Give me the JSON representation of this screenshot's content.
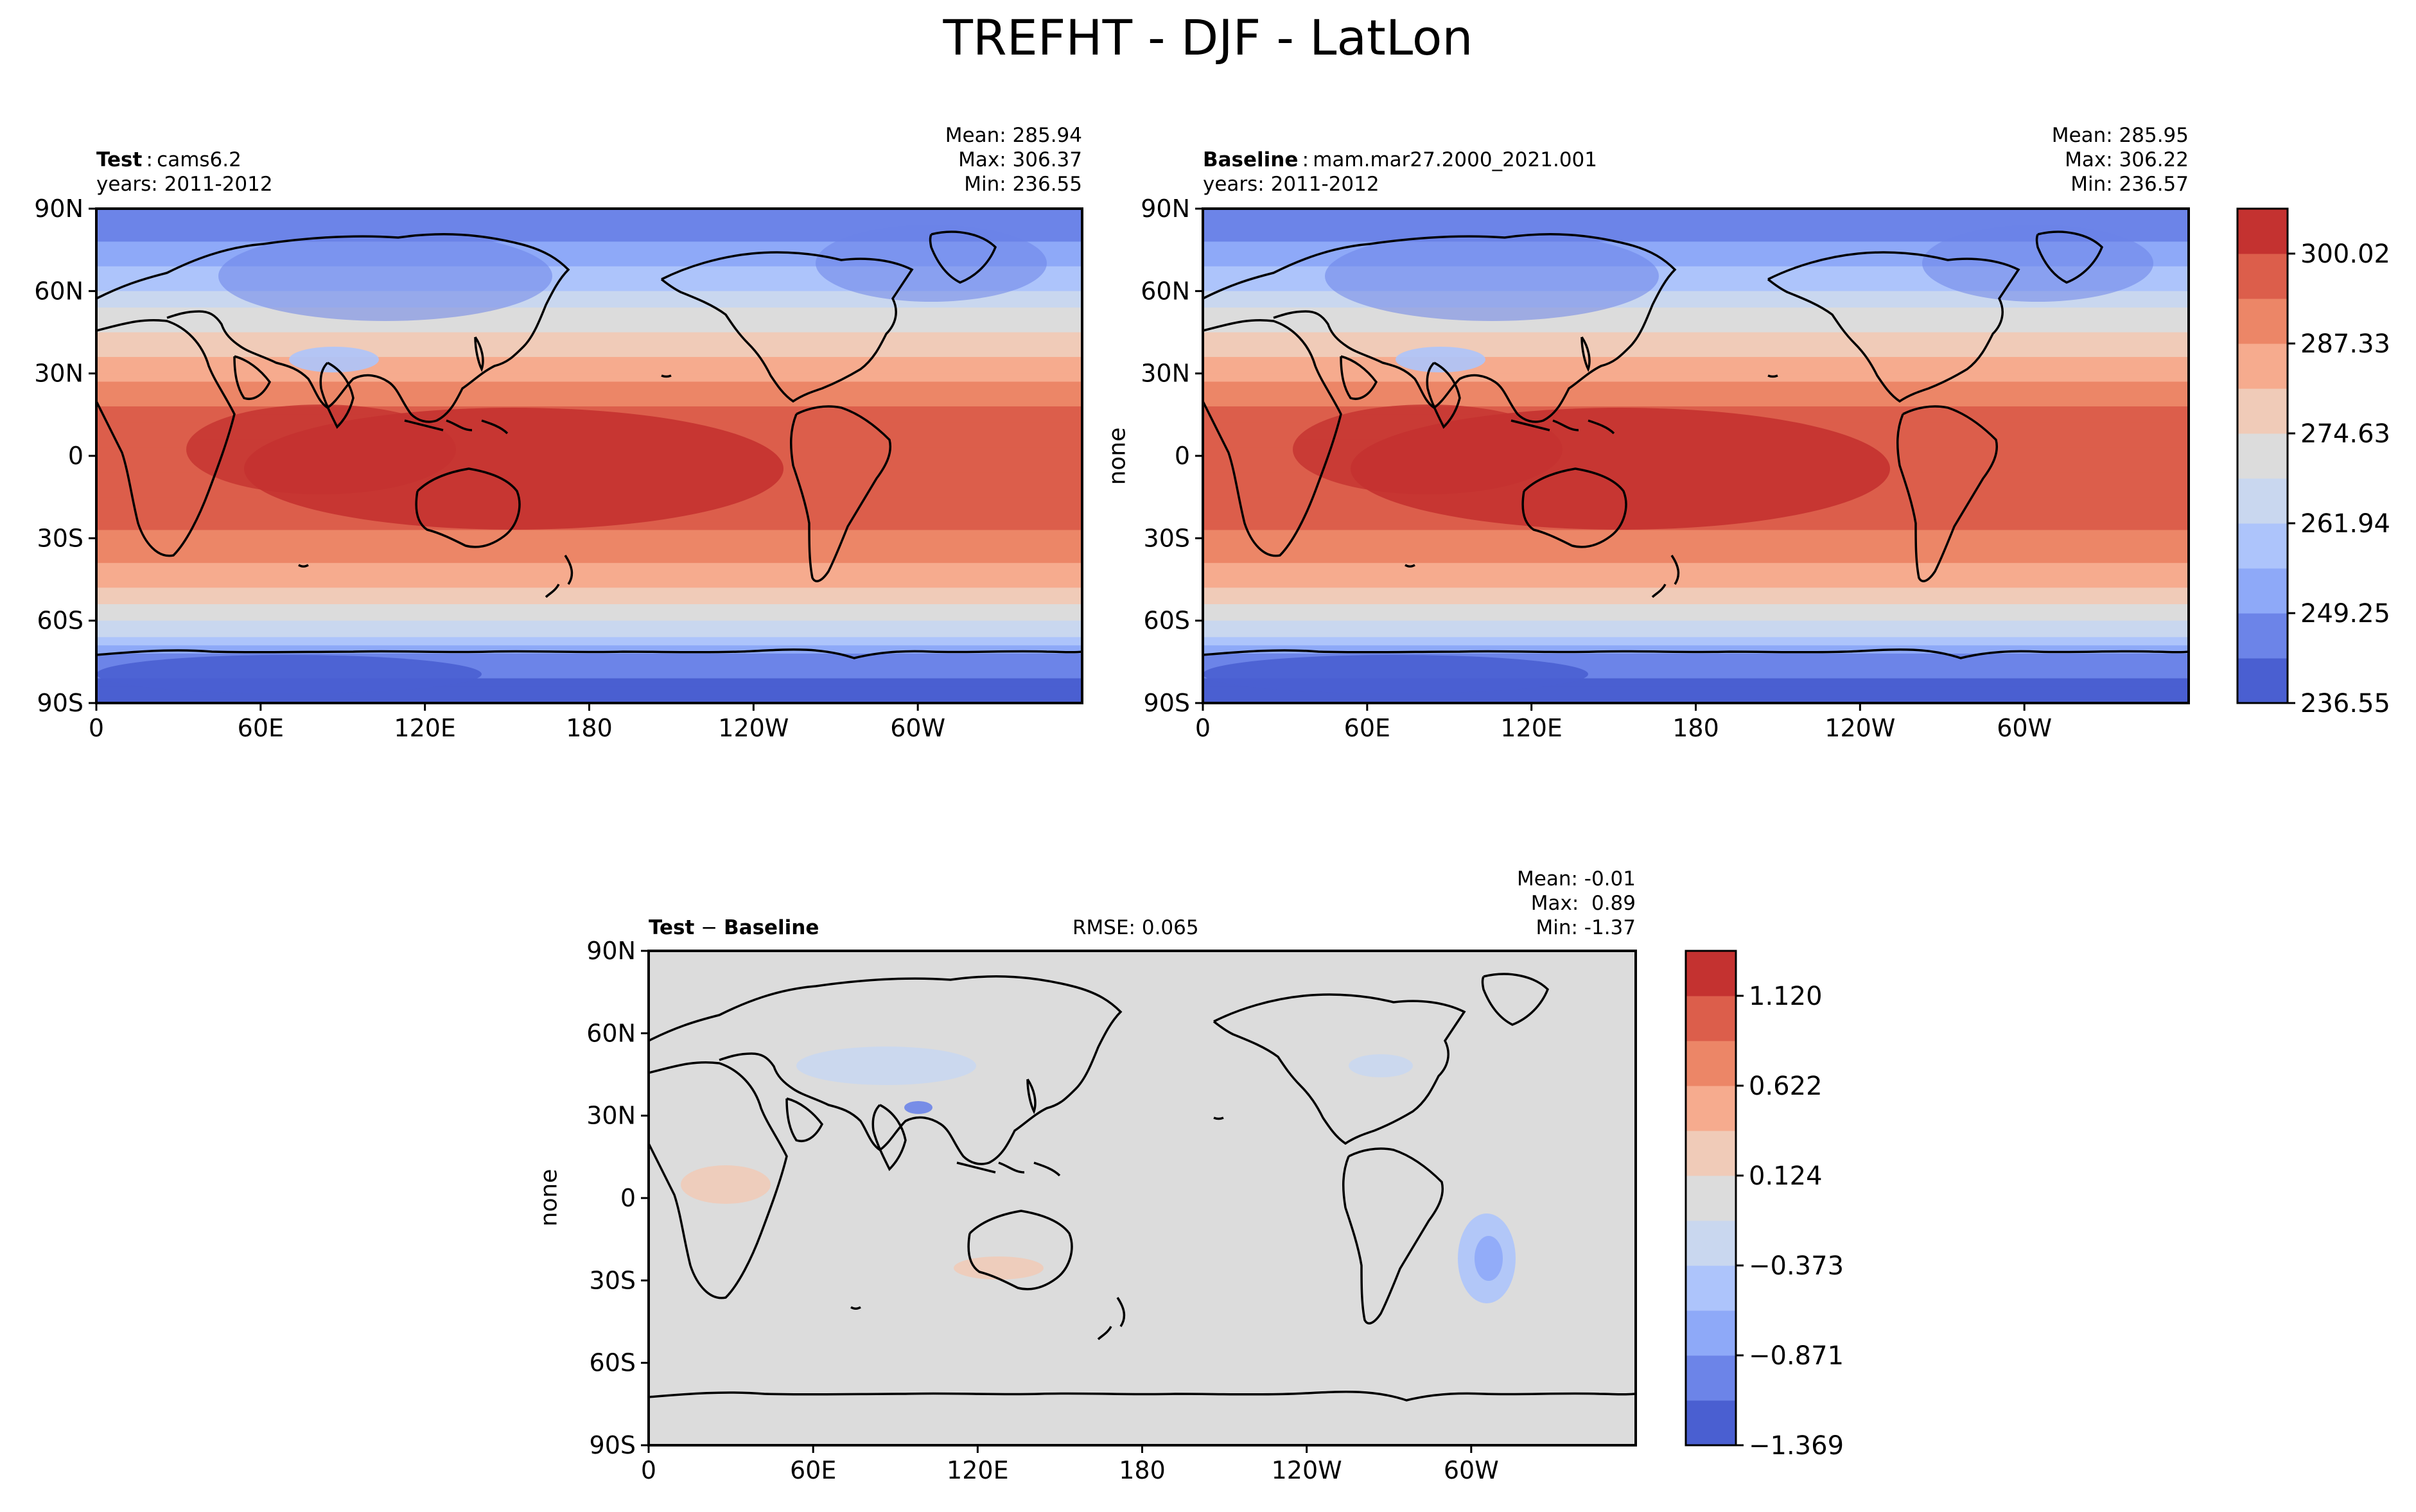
{
  "figure_title": "TREFHT - DJF - LatLon",
  "panels": {
    "test": {
      "label_bold": "Test",
      "label_text": "cams6.2",
      "years": "years: 2011-2012",
      "mean": "Mean: 285.94",
      "max": "Max: 306.37",
      "min": "Min: 236.55"
    },
    "baseline": {
      "label_bold": "Baseline",
      "label_text": "mam.mar27.2000_2021.001",
      "years": "years: 2011-2012",
      "mean": "Mean: 285.95",
      "max": "Max: 306.22",
      "min": "Min: 236.57",
      "ylabel": "none"
    },
    "diff": {
      "label_a": "Test",
      "label_sep": "−",
      "label_b": "Baseline",
      "rmse": "RMSE: 0.065",
      "mean": "Mean: -0.01",
      "max": "Max:  0.89",
      "min": "Min: -1.37",
      "ylabel": "none"
    }
  },
  "colors": {
    "abs_levels": [
      "#4a5fd1",
      "#6c84e8",
      "#8ea9f8",
      "#adc4fb",
      "#c9d7ef",
      "#dcdcdc",
      "#f0cbb8",
      "#f6ab8e",
      "#ec8667",
      "#dc5e4b",
      "#c43230"
    ],
    "diff_levels": [
      "#4a5fd1",
      "#6c84e8",
      "#8ea9f8",
      "#adc4fb",
      "#c9d7ef",
      "#dcdcdc",
      "#f0cbb8",
      "#f6ab8e",
      "#ec8667",
      "#dc5e4b",
      "#c43230"
    ],
    "coast": "#000000"
  },
  "chart_data": [
    {
      "type": "heatmap",
      "name": "Test",
      "variable": "TREFHT",
      "xlabel": "",
      "ylabel": "",
      "x_ticks": [
        "0",
        "60E",
        "120E",
        "180",
        "120W",
        "60W"
      ],
      "y_ticks": [
        "90N",
        "60N",
        "30N",
        "0",
        "30S",
        "60S",
        "90S"
      ],
      "xlim": [
        0,
        360
      ],
      "ylim": [
        -90,
        90
      ],
      "zonal_profile": {
        "lat": [
          -90,
          -75,
          -60,
          -45,
          -30,
          -15,
          0,
          15,
          30,
          45,
          60,
          75,
          90
        ],
        "value": [
          238,
          245,
          270,
          283,
          292,
          298,
          300,
          296,
          285,
          275,
          262,
          250,
          244
        ]
      },
      "mean": 285.94,
      "max": 306.37,
      "min": 236.55
    },
    {
      "type": "heatmap",
      "name": "Baseline",
      "variable": "TREFHT",
      "xlabel": "",
      "ylabel": "none",
      "x_ticks": [
        "0",
        "60E",
        "120E",
        "180",
        "120W",
        "60W"
      ],
      "y_ticks": [
        "90N",
        "60N",
        "30N",
        "0",
        "30S",
        "60S",
        "90S"
      ],
      "xlim": [
        0,
        360
      ],
      "ylim": [
        -90,
        90
      ],
      "mean": 285.95,
      "max": 306.22,
      "min": 236.57,
      "colorbar_ticks": [
        "236.55",
        "249.25",
        "261.94",
        "274.63",
        "287.33",
        "300.02"
      ]
    },
    {
      "type": "heatmap",
      "name": "Test - Baseline",
      "variable": "TREFHT",
      "xlabel": "",
      "ylabel": "none",
      "x_ticks": [
        "0",
        "60E",
        "120E",
        "180",
        "120W",
        "60W"
      ],
      "y_ticks": [
        "90N",
        "60N",
        "30N",
        "0",
        "30S",
        "60S",
        "90S"
      ],
      "xlim": [
        0,
        360
      ],
      "ylim": [
        -90,
        90
      ],
      "mean": -0.01,
      "max": 0.89,
      "min": -1.37,
      "rmse": 0.065,
      "colorbar_ticks": [
        "−1.369",
        "−0.871",
        "−0.373",
        "0.124",
        "0.622",
        "1.120"
      ]
    }
  ]
}
